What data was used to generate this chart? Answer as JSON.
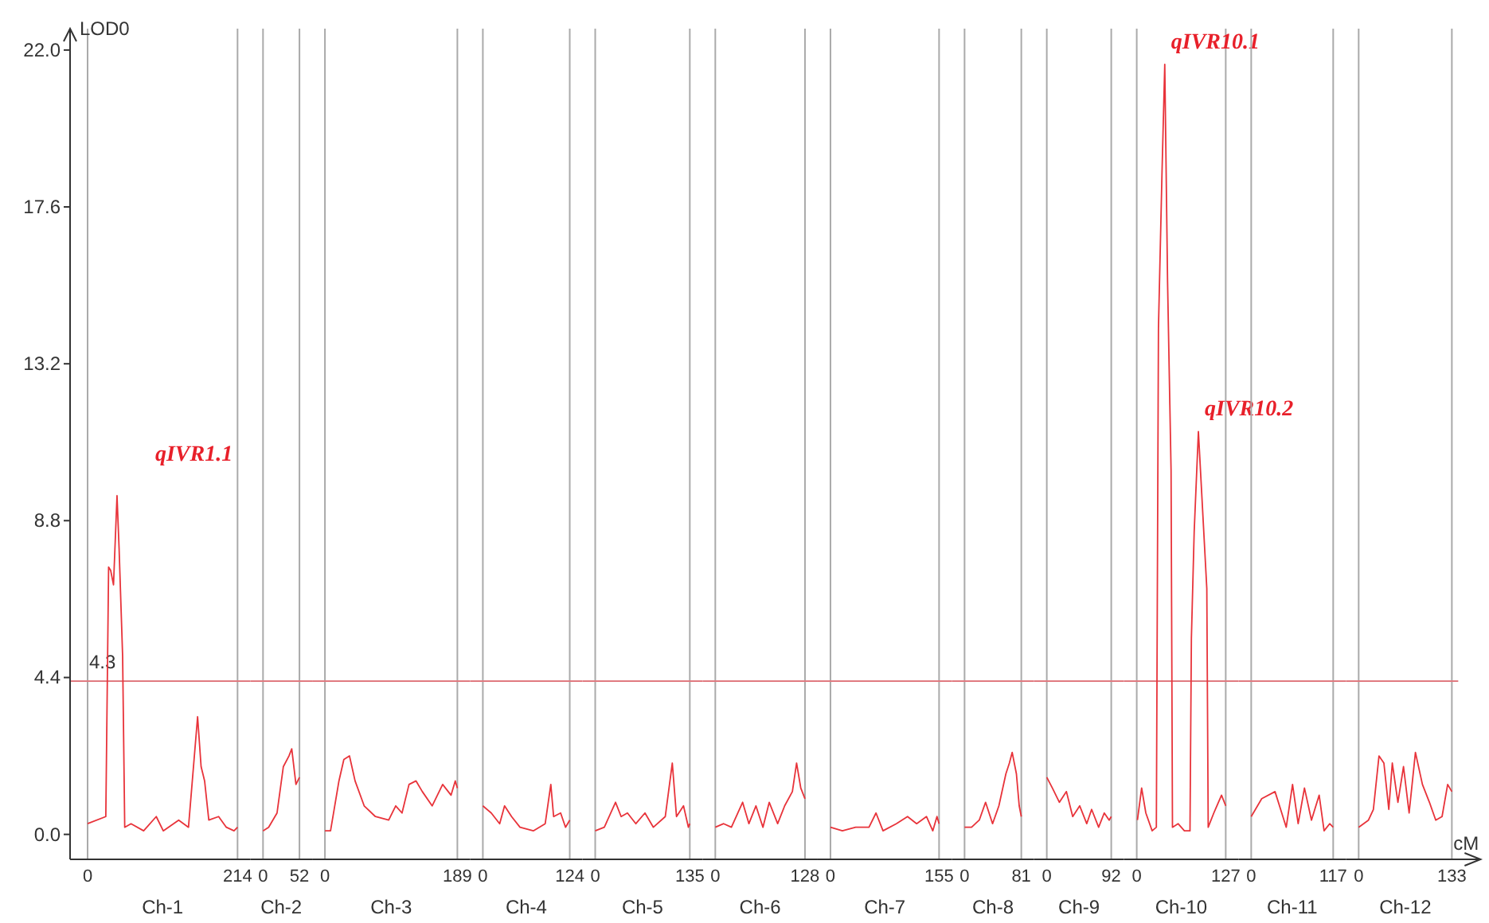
{
  "chart_data": [
    {
      "type": "line",
      "ylabel": "LOD0",
      "xlabel": "Ch-1",
      "xlim": [
        -25,
        214
      ],
      "xticks": [
        0,
        214
      ],
      "ylim": [
        -0.7,
        22.6
      ],
      "yticks": [
        {
          "value": 0,
          "label": "0.0"
        },
        4.4,
        8.8,
        13.2,
        17.6,
        {
          "value": 22,
          "label": "22.0"
        }
      ],
      "series": [
        {
          "color": "#e8333a",
          "x": [
            0,
            26,
            30,
            33,
            37,
            42,
            45,
            50,
            53,
            62,
            80,
            98,
            108,
            130,
            144,
            157,
            162,
            167,
            173,
            187,
            198,
            209,
            214
          ],
          "values": [
            0.3,
            0.5,
            7.5,
            7.4,
            7.0,
            9.5,
            8.0,
            5.0,
            0.2,
            0.3,
            0.1,
            0.5,
            0.1,
            0.4,
            0.2,
            3.3,
            1.9,
            1.5,
            0.4,
            0.5,
            0.2,
            0.1,
            0.2
          ]
        }
      ],
      "ref_lines": [
        {
          "axis": "y",
          "value": 4.3,
          "label": "4.3",
          "color": "#e07a80"
        }
      ],
      "annotations": [
        {
          "text": "qIVR1.1",
          "x": 42,
          "y": 9.5
        }
      ]
    },
    {
      "type": "line",
      "xlabel": "Ch-2",
      "xlim": [
        0,
        52
      ],
      "xticks": [
        0,
        52
      ],
      "ylim": [
        -0.7,
        22.6
      ],
      "tick_labels": "x",
      "series": [
        {
          "color": "#e8333a",
          "x": [
            0,
            8,
            20,
            29,
            37,
            41,
            47,
            52
          ],
          "values": [
            0.1,
            0.2,
            0.6,
            1.9,
            2.2,
            2.4,
            1.4,
            1.6
          ]
        }
      ],
      "ref_lines": [
        {
          "axis": "y",
          "value": 4.3,
          "color": "#e07a80"
        }
      ]
    },
    {
      "type": "line",
      "xlabel": "Ch-3",
      "xlim": [
        0,
        189
      ],
      "xticks": [
        0,
        189
      ],
      "ylim": [
        -0.7,
        22.6
      ],
      "tick_labels": "x",
      "series": [
        {
          "color": "#e8333a",
          "x": [
            0,
            8,
            20,
            27,
            35,
            43,
            56,
            72,
            91,
            101,
            110,
            120,
            130,
            139,
            153,
            168,
            180,
            186,
            189
          ],
          "values": [
            0.1,
            0.1,
            1.5,
            2.1,
            2.2,
            1.5,
            0.8,
            0.5,
            0.4,
            0.8,
            0.6,
            1.4,
            1.5,
            1.2,
            0.8,
            1.4,
            1.1,
            1.5,
            1.3
          ]
        }
      ],
      "ref_lines": [
        {
          "axis": "y",
          "value": 4.3,
          "color": "#e07a80"
        }
      ]
    },
    {
      "type": "line",
      "xlabel": "Ch-4",
      "xlim": [
        0,
        124
      ],
      "xticks": [
        0,
        124
      ],
      "ylim": [
        -0.7,
        22.6
      ],
      "tick_labels": "x",
      "series": [
        {
          "color": "#e8333a",
          "x": [
            0,
            12,
            24,
            31,
            41,
            53,
            72,
            89,
            97,
            101,
            111,
            118,
            124
          ],
          "values": [
            0.8,
            0.6,
            0.3,
            0.8,
            0.5,
            0.2,
            0.1,
            0.3,
            1.4,
            0.5,
            0.6,
            0.2,
            0.4
          ]
        }
      ],
      "ref_lines": [
        {
          "axis": "y",
          "value": 4.3,
          "color": "#e07a80"
        }
      ]
    },
    {
      "type": "line",
      "xlabel": "Ch-5",
      "xlim": [
        0,
        135
      ],
      "xticks": [
        0,
        135
      ],
      "ylim": [
        -0.7,
        22.6
      ],
      "tick_labels": "x",
      "series": [
        {
          "color": "#e8333a",
          "x": [
            0,
            13,
            29,
            37,
            46,
            58,
            71,
            83,
            100,
            110,
            116,
            126,
            133,
            135
          ],
          "values": [
            0.1,
            0.2,
            0.9,
            0.5,
            0.6,
            0.3,
            0.6,
            0.2,
            0.5,
            2.0,
            0.5,
            0.8,
            0.2,
            0.3
          ]
        }
      ],
      "ref_lines": [
        {
          "axis": "y",
          "value": 4.3,
          "color": "#e07a80"
        }
      ]
    },
    {
      "type": "line",
      "xlabel": "Ch-6",
      "xlim": [
        0,
        128
      ],
      "xticks": [
        0,
        128
      ],
      "ylim": [
        -0.7,
        22.6
      ],
      "tick_labels": "x",
      "series": [
        {
          "color": "#e8333a",
          "x": [
            0,
            12,
            23,
            39,
            48,
            58,
            68,
            77,
            89,
            99,
            110,
            116,
            122,
            128
          ],
          "values": [
            0.2,
            0.3,
            0.2,
            0.9,
            0.3,
            0.8,
            0.2,
            0.9,
            0.3,
            0.8,
            1.2,
            2.0,
            1.3,
            1.0
          ]
        }
      ],
      "ref_lines": [
        {
          "axis": "y",
          "value": 4.3,
          "color": "#e07a80"
        }
      ]
    },
    {
      "type": "line",
      "xlabel": "Ch-7",
      "xlim": [
        0,
        155
      ],
      "xticks": [
        0,
        155
      ],
      "ylim": [
        -0.7,
        22.6
      ],
      "tick_labels": "x",
      "series": [
        {
          "color": "#e8333a",
          "x": [
            0,
            17,
            36,
            55,
            65,
            75,
            94,
            110,
            123,
            137,
            146,
            152,
            155
          ],
          "values": [
            0.2,
            0.1,
            0.2,
            0.2,
            0.6,
            0.1,
            0.3,
            0.5,
            0.3,
            0.5,
            0.1,
            0.5,
            0.3
          ]
        }
      ],
      "ref_lines": [
        {
          "axis": "y",
          "value": 4.3,
          "color": "#e07a80"
        }
      ]
    },
    {
      "type": "line",
      "xlabel": "Ch-8",
      "xlim": [
        0,
        81
      ],
      "xticks": [
        0,
        81
      ],
      "ylim": [
        -0.7,
        22.6
      ],
      "tick_labels": "x",
      "series": [
        {
          "color": "#e8333a",
          "x": [
            0,
            10,
            21,
            30,
            40,
            49,
            59,
            64,
            68,
            74,
            78,
            81
          ],
          "values": [
            0.2,
            0.2,
            0.4,
            0.9,
            0.3,
            0.8,
            1.7,
            2.0,
            2.3,
            1.7,
            0.8,
            0.5
          ]
        }
      ],
      "ref_lines": [
        {
          "axis": "y",
          "value": 4.3,
          "color": "#e07a80"
        }
      ]
    },
    {
      "type": "line",
      "xlabel": "Ch-9",
      "xlim": [
        0,
        92
      ],
      "xticks": [
        0,
        92
      ],
      "ylim": [
        -0.7,
        22.6
      ],
      "tick_labels": "x",
      "series": [
        {
          "color": "#e8333a",
          "x": [
            0,
            8,
            18,
            28,
            37,
            47,
            57,
            64,
            74,
            82,
            89,
            92
          ],
          "values": [
            1.6,
            1.3,
            0.9,
            1.2,
            0.5,
            0.8,
            0.3,
            0.7,
            0.2,
            0.6,
            0.4,
            0.5
          ]
        }
      ],
      "ref_lines": [
        {
          "axis": "y",
          "value": 4.3,
          "color": "#e07a80"
        }
      ]
    },
    {
      "type": "line",
      "xlabel": "Ch-10",
      "xlim": [
        0,
        127
      ],
      "xticks": [
        0,
        127
      ],
      "ylim": [
        -0.7,
        22.6
      ],
      "tick_labels": "x",
      "series": [
        {
          "color": "#e8333a",
          "x": [
            1,
            7,
            13,
            22,
            28,
            31,
            36,
            40,
            44,
            49,
            51,
            59,
            68,
            76,
            78,
            82,
            88,
            91,
            100,
            102,
            110,
            121,
            127
          ],
          "values": [
            0.4,
            1.3,
            0.6,
            0.1,
            0.2,
            14.2,
            18.5,
            21.6,
            15.5,
            10.2,
            0.2,
            0.3,
            0.1,
            0.1,
            5.5,
            8.5,
            11.3,
            10.2,
            6.9,
            0.2,
            0.6,
            1.1,
            0.8
          ]
        }
      ],
      "ref_lines": [
        {
          "axis": "y",
          "value": 4.3,
          "color": "#e07a80"
        }
      ],
      "annotations": [
        {
          "text": "qIVR10.1",
          "x": 40,
          "y": 21.6
        },
        {
          "text": "qIVR10.2",
          "x": 88,
          "y": 11.3
        }
      ]
    },
    {
      "type": "line",
      "xlabel": "Ch-11",
      "xlim": [
        0,
        117
      ],
      "xticks": [
        0,
        117
      ],
      "ylim": [
        -0.7,
        22.6
      ],
      "tick_labels": "x",
      "series": [
        {
          "color": "#e8333a",
          "x": [
            0,
            15,
            34,
            50,
            59,
            67,
            76,
            86,
            97,
            104,
            112,
            117
          ],
          "values": [
            0.5,
            1.0,
            1.2,
            0.2,
            1.4,
            0.3,
            1.3,
            0.4,
            1.1,
            0.1,
            0.3,
            0.2
          ]
        }
      ],
      "ref_lines": [
        {
          "axis": "y",
          "value": 4.3,
          "color": "#e07a80"
        }
      ]
    },
    {
      "type": "line",
      "xlabel": "Ch-12",
      "xlim": [
        0,
        133
      ],
      "xticks": [
        0,
        133
      ],
      "ylim": [
        -0.7,
        22.6
      ],
      "tick_labels": "x",
      "series": [
        {
          "color": "#e8333a",
          "x": [
            0,
            14,
            21,
            29,
            36,
            43,
            48,
            56,
            64,
            72,
            81,
            91,
            101,
            110,
            119,
            127,
            133
          ],
          "values": [
            0.2,
            0.4,
            0.7,
            2.2,
            2.0,
            0.7,
            2.0,
            0.9,
            1.9,
            0.6,
            2.3,
            1.4,
            0.9,
            0.4,
            0.5,
            1.4,
            1.2
          ]
        }
      ],
      "ref_lines": [
        {
          "axis": "y",
          "value": 4.3,
          "color": "#e07a80"
        }
      ],
      "annotations": [
        "cM"
      ]
    }
  ]
}
